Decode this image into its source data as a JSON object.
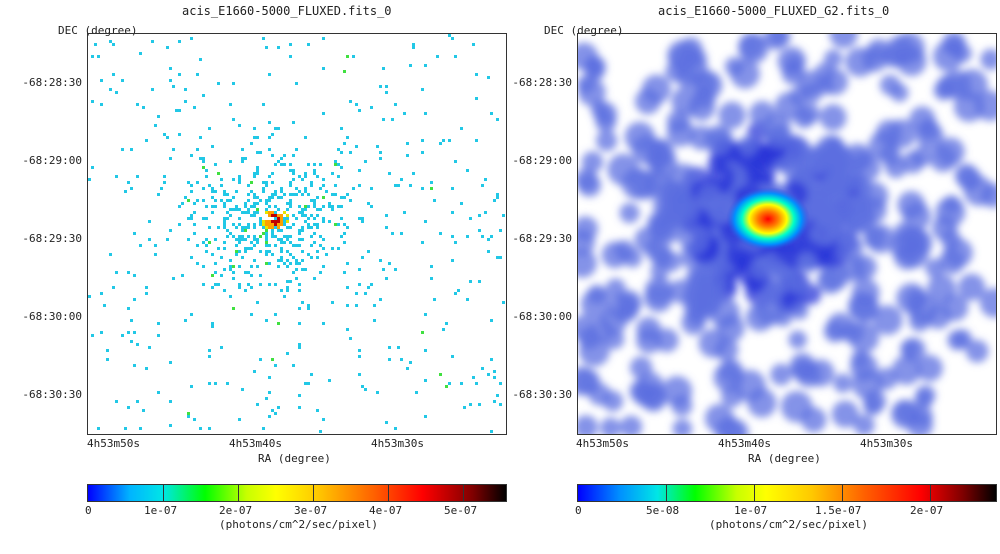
{
  "left": {
    "title": "acis_E1660-5000_FLUXED.fits_0",
    "dec_label": "DEC (degree)",
    "ra_label": "RA (degree)",
    "y_ticks": [
      "-68:28:30",
      "-68:29:00",
      "-68:29:30",
      "-68:30:00",
      "-68:30:30"
    ],
    "x_ticks": [
      "4h53m50s",
      "4h53m40s",
      "4h53m30s"
    ],
    "colorbar_ticks": [
      "0",
      "1e-07",
      "2e-07",
      "3e-07",
      "4e-07",
      "5e-07"
    ],
    "colorbar_unit": "(photons/cm^2/sec/pixel)"
  },
  "right": {
    "title": "acis_E1660-5000_FLUXED_G2.fits_0",
    "dec_label": "DEC (degree)",
    "ra_label": "RA (degree)",
    "y_ticks": [
      "-68:28:30",
      "-68:29:00",
      "-68:29:30",
      "-68:30:00",
      "-68:30:30"
    ],
    "x_ticks": [
      "4h53m50s",
      "4h53m40s",
      "4h53m30s"
    ],
    "colorbar_ticks": [
      "0",
      "5e-08",
      "1e-07",
      "1.5e-07",
      "2e-07"
    ],
    "colorbar_unit": "(photons/cm^2/sec/pixel)"
  },
  "colors": {
    "scatter": "#22c8e6",
    "smooth_bg": "#5c6fe0",
    "smooth_dark": "#2a36d8",
    "hot": "#e01010",
    "background": "#ffffff"
  }
}
